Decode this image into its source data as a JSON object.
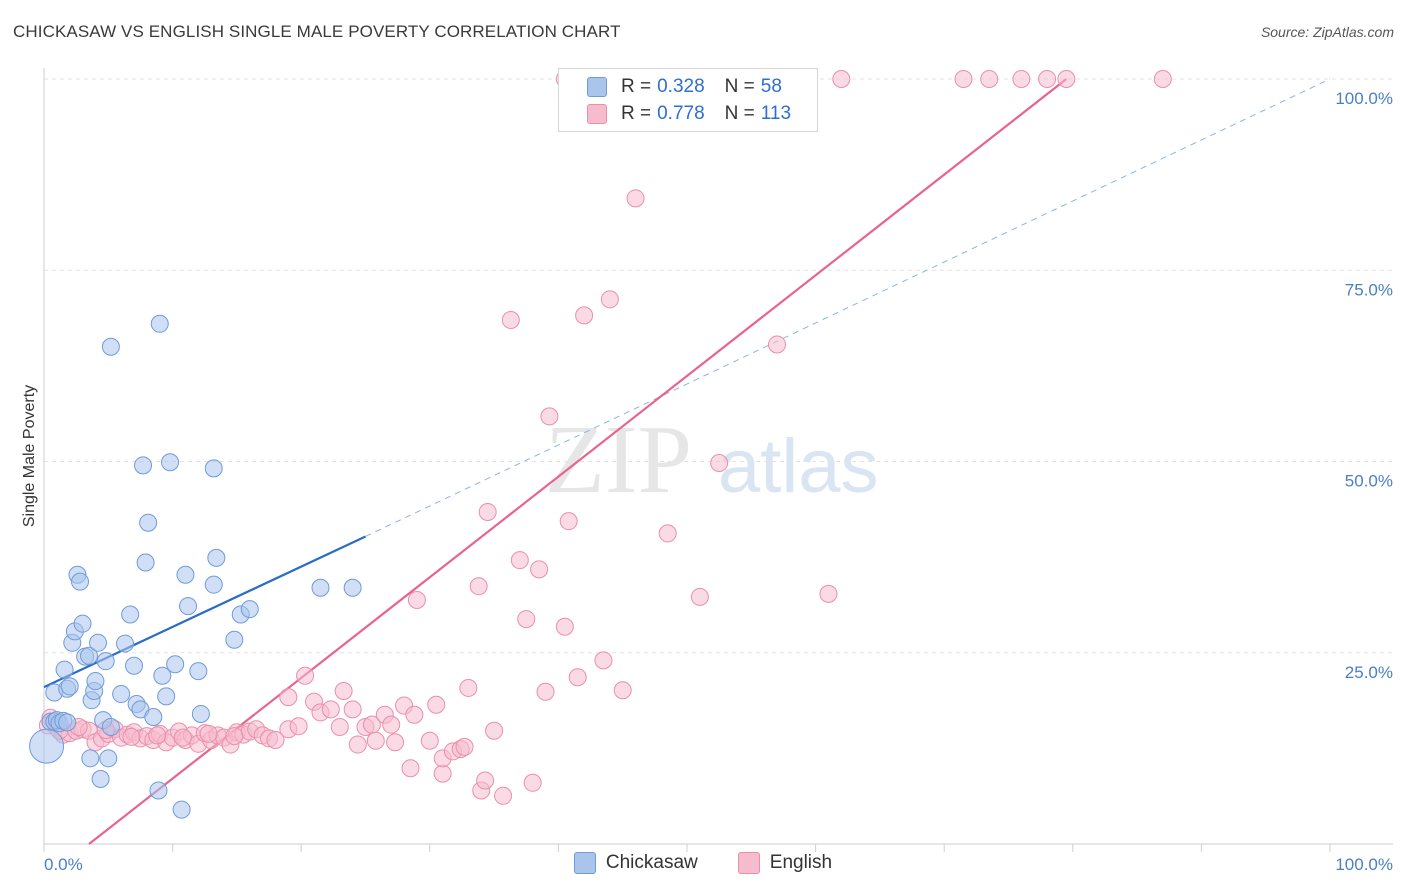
{
  "title": "CHICKASAW VS ENGLISH SINGLE MALE POVERTY CORRELATION CHART",
  "source": "Source: ZipAtlas.com",
  "watermark": {
    "zip": "ZIP",
    "atlas": "atlas"
  },
  "colors": {
    "chickasaw_fill": "#a9c5ec",
    "chickasaw_stroke": "#6f9bd8",
    "chickasaw_line": "#2a6cc9",
    "english_fill": "#f6bccd",
    "english_stroke": "#ea8fab",
    "english_line": "#e8648e",
    "tick_text": "#4a7fc4",
    "grid": "#e3e3e3"
  },
  "legend": {
    "rows": [
      {
        "r_label": "R =",
        "r_value": "0.328",
        "n_label": "N =",
        "n_value": "58"
      },
      {
        "r_label": "R =",
        "r_value": "0.778",
        "n_label": "N =",
        "n_value": "113"
      }
    ],
    "placement": "top-center"
  },
  "bottom_legend": {
    "series1": "Chickasaw",
    "series2": "English"
  },
  "chart_data": {
    "type": "scatter",
    "title": "CHICKASAW VS ENGLISH SINGLE MALE POVERTY CORRELATION CHART",
    "ylabel": "Single Male Poverty",
    "xlabel": "",
    "x_tick_labels": [
      "0.0%",
      "100.0%"
    ],
    "y_tick_labels": [
      "25.0%",
      "50.0%",
      "75.0%",
      "100.0%"
    ],
    "y_ticks": [
      25,
      50,
      75,
      100
    ],
    "xlim": [
      0,
      100
    ],
    "ylim": [
      0,
      100
    ],
    "grid": true,
    "series": [
      {
        "name": "Chickasaw",
        "r": 0.328,
        "n": 58,
        "trend": {
          "x": [
            0,
            25
          ],
          "y": [
            20.5,
            40.2
          ],
          "dashed_to": [
            100,
            100
          ]
        },
        "points": [
          [
            0.2,
            12.8
          ],
          [
            0.5,
            16.0
          ],
          [
            0.8,
            16.0
          ],
          [
            1.0,
            16.2
          ],
          [
            1.2,
            15.8
          ],
          [
            1.5,
            16.1
          ],
          [
            1.8,
            15.9
          ],
          [
            0.8,
            19.8
          ],
          [
            1.6,
            22.8
          ],
          [
            1.8,
            20.3
          ],
          [
            2.0,
            20.6
          ],
          [
            2.2,
            26.3
          ],
          [
            2.4,
            27.8
          ],
          [
            2.6,
            35.2
          ],
          [
            2.8,
            34.3
          ],
          [
            3.0,
            28.8
          ],
          [
            3.2,
            24.5
          ],
          [
            3.5,
            24.6
          ],
          [
            3.7,
            18.8
          ],
          [
            3.9,
            20.0
          ],
          [
            4.0,
            21.3
          ],
          [
            4.2,
            26.3
          ],
          [
            4.4,
            8.5
          ],
          [
            4.6,
            16.2
          ],
          [
            4.8,
            23.9
          ],
          [
            5.0,
            11.2
          ],
          [
            5.2,
            15.3
          ],
          [
            3.6,
            11.2
          ],
          [
            5.2,
            65.0
          ],
          [
            6.0,
            19.6
          ],
          [
            6.3,
            26.2
          ],
          [
            6.7,
            30.0
          ],
          [
            7.0,
            23.3
          ],
          [
            7.2,
            18.3
          ],
          [
            7.5,
            17.6
          ],
          [
            7.7,
            49.5
          ],
          [
            7.9,
            36.8
          ],
          [
            8.1,
            42.0
          ],
          [
            8.5,
            16.6
          ],
          [
            8.9,
            7.0
          ],
          [
            9.0,
            68.0
          ],
          [
            9.2,
            22.0
          ],
          [
            9.5,
            19.3
          ],
          [
            9.8,
            49.9
          ],
          [
            10.2,
            23.5
          ],
          [
            10.7,
            4.5
          ],
          [
            11.0,
            35.2
          ],
          [
            11.2,
            31.1
          ],
          [
            12.0,
            22.6
          ],
          [
            12.2,
            17.0
          ],
          [
            13.2,
            49.1
          ],
          [
            13.4,
            37.4
          ],
          [
            13.2,
            33.9
          ],
          [
            14.8,
            26.7
          ],
          [
            15.3,
            30.0
          ],
          [
            16.0,
            30.7
          ],
          [
            21.5,
            33.5
          ],
          [
            24.0,
            33.5
          ]
        ]
      },
      {
        "name": "English",
        "r": 0.778,
        "n": 113,
        "trend": {
          "x": [
            3.5,
            79.5
          ],
          "y": [
            0,
            100
          ]
        },
        "points": [
          [
            0.5,
            16.5
          ],
          [
            1.0,
            15.2
          ],
          [
            1.5,
            14.3
          ],
          [
            2.0,
            14.5
          ],
          [
            2.5,
            14.8
          ],
          [
            3.0,
            15.0
          ],
          [
            3.5,
            14.8
          ],
          [
            4.0,
            13.3
          ],
          [
            4.5,
            13.8
          ],
          [
            5.0,
            14.4
          ],
          [
            5.5,
            15.0
          ],
          [
            6.0,
            13.9
          ],
          [
            6.5,
            14.3
          ],
          [
            7.0,
            14.6
          ],
          [
            7.5,
            13.8
          ],
          [
            8.0,
            14.1
          ],
          [
            8.5,
            13.6
          ],
          [
            9.0,
            14.4
          ],
          [
            9.5,
            13.3
          ],
          [
            10.0,
            13.9
          ],
          [
            10.5,
            14.7
          ],
          [
            11.0,
            13.6
          ],
          [
            11.5,
            14.2
          ],
          [
            12.0,
            13.1
          ],
          [
            12.5,
            14.5
          ],
          [
            13.0,
            13.6
          ],
          [
            13.5,
            14.2
          ],
          [
            14.0,
            13.9
          ],
          [
            14.5,
            13.0
          ],
          [
            15.0,
            14.6
          ],
          [
            15.5,
            14.3
          ],
          [
            16.0,
            14.7
          ],
          [
            16.5,
            15.0
          ],
          [
            17.0,
            14.2
          ],
          [
            17.5,
            13.8
          ],
          [
            18.0,
            13.6
          ],
          [
            19.0,
            15.0
          ],
          [
            19.0,
            19.2
          ],
          [
            19.8,
            15.4
          ],
          [
            20.3,
            22.0
          ],
          [
            21.0,
            18.6
          ],
          [
            21.5,
            17.2
          ],
          [
            22.3,
            17.6
          ],
          [
            23.0,
            15.3
          ],
          [
            23.3,
            20.0
          ],
          [
            24.0,
            17.6
          ],
          [
            24.4,
            13.0
          ],
          [
            25.0,
            15.3
          ],
          [
            25.5,
            15.6
          ],
          [
            25.8,
            13.5
          ],
          [
            26.5,
            16.9
          ],
          [
            27.0,
            15.6
          ],
          [
            27.3,
            13.3
          ],
          [
            28.0,
            18.1
          ],
          [
            28.5,
            9.9
          ],
          [
            28.8,
            16.9
          ],
          [
            29.0,
            31.9
          ],
          [
            30.0,
            13.5
          ],
          [
            30.5,
            18.2
          ],
          [
            31.0,
            9.2
          ],
          [
            31.0,
            11.2
          ],
          [
            31.8,
            12.1
          ],
          [
            32.4,
            12.4
          ],
          [
            32.7,
            12.7
          ],
          [
            33.0,
            20.4
          ],
          [
            33.8,
            33.7
          ],
          [
            34.0,
            7.0
          ],
          [
            34.3,
            8.3
          ],
          [
            34.5,
            43.4
          ],
          [
            35.0,
            14.8
          ],
          [
            35.7,
            6.3
          ],
          [
            36.3,
            68.5
          ],
          [
            37.0,
            37.1
          ],
          [
            37.5,
            29.4
          ],
          [
            38.0,
            8.0
          ],
          [
            38.5,
            35.9
          ],
          [
            39.0,
            19.9
          ],
          [
            39.3,
            55.9
          ],
          [
            40.5,
            28.4
          ],
          [
            40.8,
            42.2
          ],
          [
            41.5,
            21.8
          ],
          [
            42.0,
            69.1
          ],
          [
            43.5,
            24.0
          ],
          [
            44.0,
            71.2
          ],
          [
            45.0,
            20.1
          ],
          [
            46.0,
            84.4
          ],
          [
            48.5,
            40.6
          ],
          [
            51.0,
            32.3
          ],
          [
            52.5,
            49.8
          ],
          [
            57.0,
            65.3
          ],
          [
            61.0,
            32.7
          ],
          [
            40.5,
            100
          ],
          [
            47.0,
            100
          ],
          [
            49.0,
            100
          ],
          [
            50.2,
            100
          ],
          [
            53.0,
            100
          ],
          [
            54.5,
            100
          ],
          [
            56.5,
            100
          ],
          [
            62.0,
            100
          ],
          [
            71.5,
            100
          ],
          [
            73.5,
            100
          ],
          [
            76.0,
            100
          ],
          [
            78.0,
            100
          ],
          [
            79.5,
            100
          ],
          [
            87.0,
            100
          ],
          [
            0.3,
            15.5
          ],
          [
            1.2,
            14.8
          ],
          [
            2.7,
            15.3
          ],
          [
            4.8,
            14.9
          ],
          [
            6.8,
            14.0
          ],
          [
            8.8,
            14.2
          ],
          [
            10.8,
            13.9
          ],
          [
            12.8,
            14.4
          ],
          [
            14.8,
            14.1
          ]
        ]
      }
    ]
  }
}
